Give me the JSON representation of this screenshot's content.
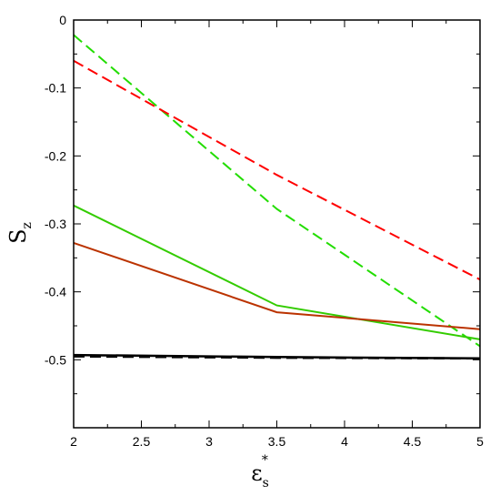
{
  "chart_data": {
    "type": "line",
    "title": "",
    "xlabel": {
      "main": "ε",
      "sub": "s",
      "sup": "*"
    },
    "ylabel": {
      "main": "S",
      "sub": "z"
    },
    "xlim": [
      2,
      5
    ],
    "ylim": [
      -0.6,
      0
    ],
    "xticks": [
      {
        "value": 2,
        "label": "2"
      },
      {
        "value": 2.5,
        "label": "2.5"
      },
      {
        "value": 3,
        "label": "3"
      },
      {
        "value": 3.5,
        "label": "3.5"
      },
      {
        "value": 4,
        "label": "4"
      },
      {
        "value": 4.5,
        "label": "4.5"
      },
      {
        "value": 5,
        "label": "5"
      }
    ],
    "yticks": [
      {
        "value": 0,
        "label": "0"
      },
      {
        "value": -0.1,
        "label": "-0.1"
      },
      {
        "value": -0.2,
        "label": "-0.2"
      },
      {
        "value": -0.3,
        "label": "-0.3"
      },
      {
        "value": -0.4,
        "label": "-0.4"
      },
      {
        "value": -0.5,
        "label": "-0.5"
      }
    ],
    "grid": false,
    "series": [
      {
        "color": "#22dd00",
        "dashed": true,
        "width": 2,
        "x": [
          2,
          3.5,
          5
        ],
        "y": [
          -0.022,
          -0.278,
          -0.48
        ]
      },
      {
        "color": "#ff0000",
        "dashed": true,
        "width": 2,
        "x": [
          2,
          3.5,
          5
        ],
        "y": [
          -0.06,
          -0.228,
          -0.382
        ]
      },
      {
        "color": "#33cc00",
        "dashed": false,
        "width": 2,
        "x": [
          2,
          3.5,
          5
        ],
        "y": [
          -0.273,
          -0.42,
          -0.47
        ]
      },
      {
        "color": "#bb3300",
        "dashed": false,
        "width": 2,
        "x": [
          2,
          3.5,
          5
        ],
        "y": [
          -0.328,
          -0.43,
          -0.455
        ]
      },
      {
        "color": "#000000",
        "dashed": true,
        "width": 2.5,
        "x": [
          2,
          3.5,
          5
        ],
        "y": [
          -0.495,
          -0.497,
          -0.498
        ]
      },
      {
        "color": "#000000",
        "dashed": false,
        "width": 2.5,
        "x": [
          2,
          3.5,
          5
        ],
        "y": [
          -0.493,
          -0.496,
          -0.498
        ]
      }
    ]
  }
}
